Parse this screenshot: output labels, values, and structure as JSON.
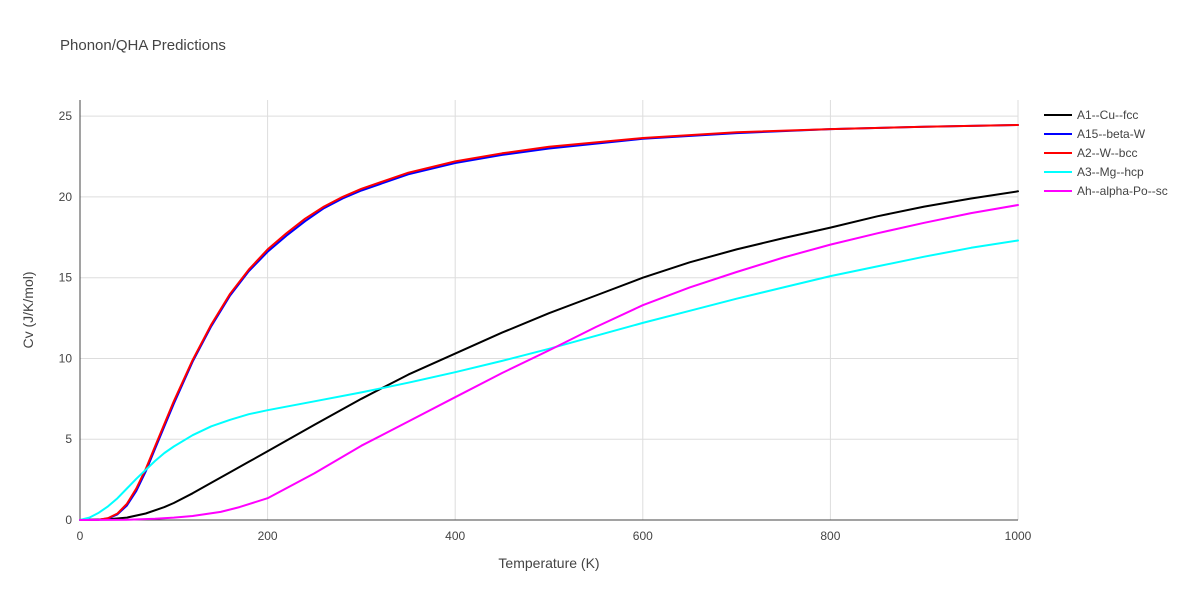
{
  "chart_data": {
    "type": "line",
    "title": "Phonon/QHA Predictions",
    "xlabel": "Temperature (K)",
    "ylabel": "Cv (J/K/mol)",
    "xlim": [
      0,
      1000
    ],
    "ylim": [
      0,
      26
    ],
    "x_ticks": [
      0,
      200,
      400,
      600,
      800,
      1000
    ],
    "y_ticks": [
      0,
      5,
      10,
      15,
      20,
      25
    ],
    "x_tick_labels": [
      "0",
      "200",
      "400",
      "600",
      "800",
      "1000"
    ],
    "y_tick_labels": [
      "0",
      "5",
      "10",
      "15",
      "20",
      "25"
    ],
    "grid": true,
    "legend_position": "top-right",
    "series": [
      {
        "name": "A1--Cu--fcc",
        "color": "#000000",
        "x": [
          0,
          30,
          50,
          70,
          90,
          100,
          120,
          140,
          160,
          180,
          200,
          250,
          300,
          350,
          400,
          450,
          500,
          550,
          600,
          650,
          700,
          750,
          800,
          850,
          900,
          950,
          1000
        ],
        "y": [
          0,
          0.05,
          0.15,
          0.4,
          0.8,
          1.05,
          1.65,
          2.3,
          2.95,
          3.6,
          4.25,
          5.9,
          7.5,
          9.0,
          10.3,
          11.6,
          12.8,
          13.9,
          15.0,
          15.95,
          16.75,
          17.45,
          18.1,
          18.8,
          19.4,
          19.9,
          20.35
        ]
      },
      {
        "name": "A15--beta-W",
        "color": "#0000ff",
        "x": [
          0,
          20,
          30,
          40,
          50,
          60,
          70,
          80,
          90,
          100,
          120,
          140,
          160,
          180,
          200,
          220,
          240,
          260,
          280,
          300,
          350,
          400,
          450,
          500,
          600,
          700,
          800,
          900,
          1000
        ],
        "y": [
          0,
          0.02,
          0.1,
          0.35,
          0.9,
          1.8,
          3.0,
          4.4,
          5.8,
          7.2,
          9.8,
          12.0,
          13.9,
          15.4,
          16.6,
          17.6,
          18.5,
          19.3,
          19.9,
          20.4,
          21.4,
          22.1,
          22.6,
          23.0,
          23.6,
          23.95,
          24.2,
          24.35,
          24.45
        ]
      },
      {
        "name": "A2--W--bcc",
        "color": "#ff0000",
        "x": [
          0,
          20,
          30,
          40,
          50,
          60,
          70,
          80,
          90,
          100,
          120,
          140,
          160,
          180,
          200,
          220,
          240,
          260,
          280,
          300,
          350,
          400,
          450,
          500,
          600,
          700,
          800,
          900,
          1000
        ],
        "y": [
          0,
          0.02,
          0.12,
          0.4,
          1.0,
          1.95,
          3.15,
          4.55,
          5.95,
          7.35,
          9.9,
          12.1,
          14.0,
          15.5,
          16.75,
          17.75,
          18.65,
          19.4,
          20.0,
          20.5,
          21.5,
          22.2,
          22.7,
          23.1,
          23.65,
          24.0,
          24.2,
          24.35,
          24.45
        ]
      },
      {
        "name": "A3--Mg--hcp",
        "color": "#00ffff",
        "x": [
          0,
          10,
          20,
          30,
          40,
          50,
          60,
          70,
          80,
          90,
          100,
          120,
          140,
          160,
          180,
          200,
          250,
          300,
          350,
          400,
          450,
          500,
          550,
          600,
          650,
          700,
          750,
          800,
          850,
          900,
          950,
          1000
        ],
        "y": [
          0,
          0.15,
          0.45,
          0.85,
          1.35,
          1.95,
          2.55,
          3.1,
          3.65,
          4.15,
          4.55,
          5.25,
          5.8,
          6.2,
          6.55,
          6.8,
          7.35,
          7.9,
          8.5,
          9.15,
          9.85,
          10.6,
          11.4,
          12.2,
          12.95,
          13.7,
          14.4,
          15.1,
          15.7,
          16.3,
          16.85,
          17.3
        ]
      },
      {
        "name": "Ah--alpha-Po--sc",
        "color": "#ff00ff",
        "x": [
          0,
          50,
          80,
          100,
          120,
          150,
          170,
          200,
          250,
          300,
          350,
          400,
          450,
          500,
          550,
          600,
          650,
          700,
          750,
          800,
          850,
          900,
          950,
          1000
        ],
        "y": [
          0,
          0.02,
          0.08,
          0.15,
          0.25,
          0.5,
          0.8,
          1.35,
          2.9,
          4.6,
          6.1,
          7.6,
          9.1,
          10.5,
          11.95,
          13.3,
          14.4,
          15.35,
          16.25,
          17.05,
          17.75,
          18.4,
          19.0,
          19.5
        ]
      }
    ]
  }
}
